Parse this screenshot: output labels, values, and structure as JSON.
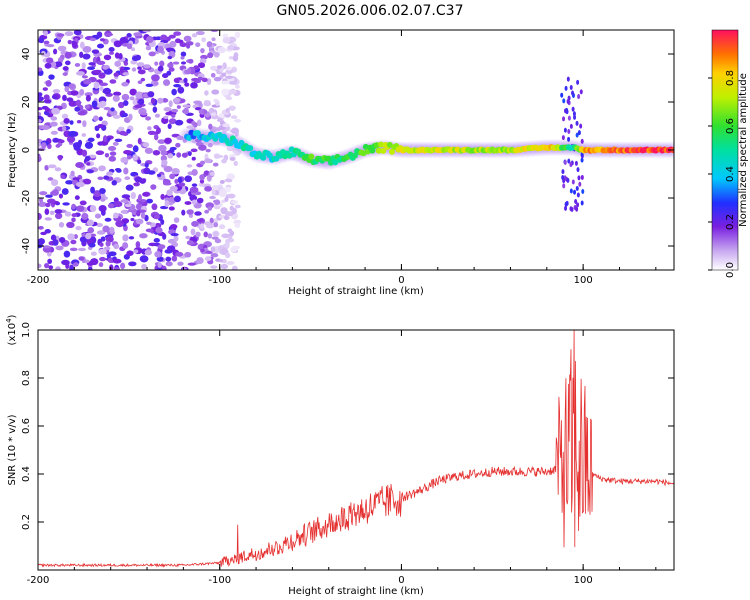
{
  "title": "GN05.2026.006.02.07.C37",
  "chart_data": [
    {
      "type": "heatmap",
      "name": "spectrogram",
      "xlabel": "Height of straight line (km)",
      "ylabel": "Frequency (Hz)",
      "xlim": [
        -200,
        150
      ],
      "ylim": [
        -50,
        50
      ],
      "xticks": [
        -200,
        -100,
        0,
        100
      ],
      "yticks": [
        -40,
        -20,
        0,
        20,
        40
      ],
      "colorbar": {
        "label": "Normalized spectral amplitude",
        "range": [
          0,
          1
        ],
        "ticks": [
          "0.0",
          "0.2",
          "0.4",
          "0.6",
          "0.8"
        ]
      },
      "features": [
        {
          "region": "noise",
          "x_range": [
            -200,
            -90
          ],
          "freq_range": [
            -50,
            50
          ],
          "amplitude": 0.2
        },
        {
          "region": "signal",
          "x": [
            -115,
            -100,
            -90,
            -80,
            -70,
            -60,
            -50,
            -40,
            -30,
            -20,
            -10,
            0,
            20,
            40,
            60,
            80,
            90,
            95,
            100,
            120,
            150
          ],
          "freq": [
            6,
            5,
            3,
            -2,
            -3,
            -1,
            -4,
            -5,
            -3,
            0,
            1,
            0,
            0,
            0,
            0,
            1,
            1,
            1,
            0,
            0,
            0
          ],
          "amplitude": [
            0.35,
            0.4,
            0.45,
            0.45,
            0.45,
            0.5,
            0.6,
            0.55,
            0.55,
            0.6,
            0.7,
            0.75,
            0.75,
            0.7,
            0.7,
            0.85,
            0.6,
            0.5,
            0.85,
            0.9,
            0.95
          ]
        },
        {
          "region": "burst",
          "x_range": [
            88,
            100
          ],
          "freq_range": [
            -25,
            30
          ]
        }
      ]
    },
    {
      "type": "line",
      "name": "snr",
      "xlabel": "Height of straight line (km)",
      "ylabel": "SNR (10 * v/v)",
      "yscale_label": "(x10^4)",
      "xlim": [
        -200,
        150
      ],
      "ylim": [
        0,
        1.0
      ],
      "xticks": [
        -200,
        -100,
        0,
        100
      ],
      "yticks": [
        0.2,
        0.4,
        0.6,
        0.8,
        1.0
      ],
      "color": "#e53030",
      "envelope": {
        "x": [
          -200,
          -120,
          -100,
          -85,
          -70,
          -55,
          -40,
          -25,
          -10,
          0,
          10,
          20,
          30,
          40,
          50,
          60,
          70,
          80,
          85,
          90,
          95,
          100,
          105,
          110,
          120,
          130,
          140,
          150
        ],
        "y": [
          0.02,
          0.02,
          0.03,
          0.06,
          0.09,
          0.14,
          0.19,
          0.24,
          0.28,
          0.3,
          0.33,
          0.37,
          0.39,
          0.4,
          0.41,
          0.41,
          0.41,
          0.41,
          0.42,
          0.45,
          0.5,
          0.45,
          0.4,
          0.38,
          0.37,
          0.37,
          0.37,
          0.36
        ]
      },
      "peak": {
        "x": 95,
        "y": 1.0
      }
    }
  ],
  "colors": {
    "signal": "#e53030",
    "noise": "#7a30e0"
  }
}
